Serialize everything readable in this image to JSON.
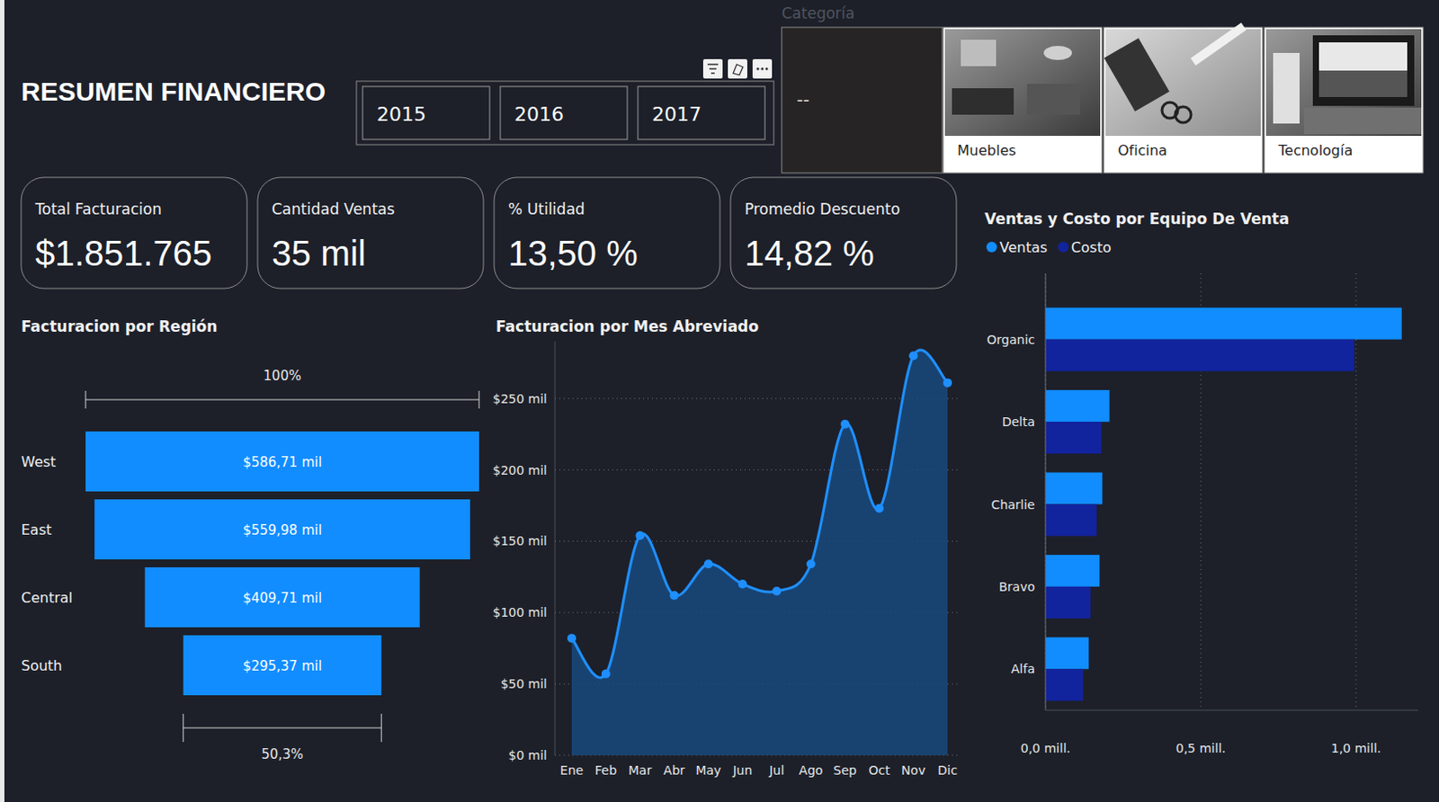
{
  "header": {
    "title": "RESUMEN FINANCIERO"
  },
  "year_slicer": {
    "items": [
      "2015",
      "2016",
      "2017"
    ]
  },
  "category_slicer": {
    "title": "Categoría",
    "items": [
      "--",
      "Muebles",
      "Oficina",
      "Tecnología"
    ]
  },
  "cards": [
    {
      "label": "Total Facturacion",
      "value": "$1.851.765"
    },
    {
      "label": "Cantidad Ventas",
      "value": "35 mil"
    },
    {
      "label": "% Utilidad",
      "value": "13,50 %"
    },
    {
      "label": "Promedio Descuento",
      "value": "14,82 %"
    }
  ],
  "chart_data": [
    {
      "type": "funnel",
      "title": "Facturacion por Región",
      "categories": [
        "West",
        "East",
        "Central",
        "South"
      ],
      "values": [
        586.71,
        559.98,
        409.71,
        295.37
      ],
      "value_labels": [
        "$586,71 mil",
        "$559,98 mil",
        "$409,71 mil",
        "$295,37 mil"
      ],
      "color": "#118dff",
      "data_labels": true,
      "annotations": [
        "100%",
        "50,3%"
      ]
    },
    {
      "type": "area",
      "title": "Facturacion por Mes Abreviado",
      "categories": [
        "Ene",
        "Feb",
        "Mar",
        "Abr",
        "May",
        "Jun",
        "Jul",
        "Ago",
        "Sep",
        "Oct",
        "Nov",
        "Dic"
      ],
      "values": [
        82,
        57,
        154,
        112,
        134,
        120,
        115,
        134,
        232,
        173,
        280,
        261
      ],
      "color": "#1f8fff",
      "marker": "circle",
      "ylim": [
        0,
        290
      ],
      "yticks": [
        {
          "value": 0,
          "label": "$0 mil"
        },
        {
          "value": 50,
          "label": "$50 mil"
        },
        {
          "value": 100,
          "label": "$100 mil"
        },
        {
          "value": 150,
          "label": "$150 mil"
        },
        {
          "value": 200,
          "label": "$200 mil"
        },
        {
          "value": 250,
          "label": "$250 mil"
        }
      ],
      "grid": true
    },
    {
      "type": "bar",
      "orientation": "horizontal",
      "title": "Ventas y  Costo por Equipo De Venta",
      "categories": [
        "Organic",
        "Delta",
        "Charlie",
        "Bravo",
        "Alfa"
      ],
      "series": [
        {
          "name": "Ventas",
          "color": "#118dff",
          "values": [
            1.147,
            0.206,
            0.183,
            0.174,
            0.139
          ]
        },
        {
          "name": "Costo",
          "color": "#12239e",
          "values": [
            0.994,
            0.18,
            0.165,
            0.145,
            0.121
          ]
        }
      ],
      "xlim": [
        0,
        1.2
      ],
      "xticks": [
        {
          "value": 0,
          "label": "0,0 mill."
        },
        {
          "value": 0.5,
          "label": "0,5 mill."
        },
        {
          "value": 1,
          "label": "1,0 mill."
        }
      ],
      "grid": true,
      "legend": "top-left"
    }
  ]
}
